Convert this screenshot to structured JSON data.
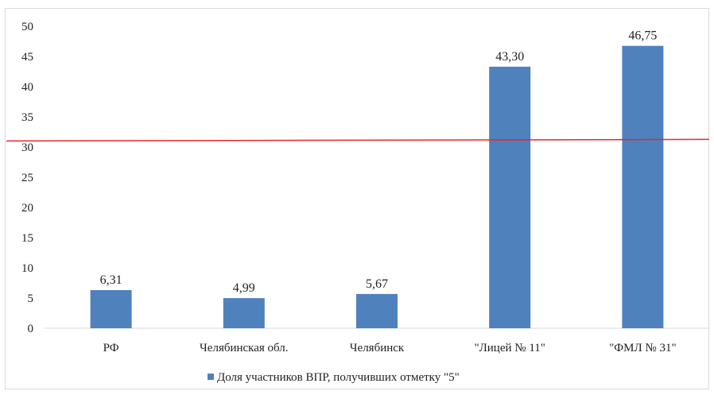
{
  "chart_data": {
    "type": "bar",
    "categories": [
      "РФ",
      "Челябинская обл.",
      "Челябинск",
      "\"Лицей № 11\"",
      "\"ФМЛ № 31\""
    ],
    "series": [
      {
        "name": "Доля участников ВПР, получивших отметку \"5\"",
        "values": [
          6.31,
          4.99,
          5.67,
          43.3,
          46.75
        ],
        "data_labels": [
          "6,31",
          "4,99",
          "5,67",
          "43,30",
          "46,75"
        ],
        "color": "#4f81bd"
      }
    ],
    "reference_line": {
      "value": 31,
      "color": "#e8262b"
    },
    "yticks": [
      "0",
      "5",
      "10",
      "15",
      "20",
      "25",
      "30",
      "35",
      "40",
      "45",
      "50"
    ],
    "ylim": [
      0,
      50
    ],
    "grid": false,
    "legend": "bottom",
    "title": "",
    "xlabel": "",
    "ylabel": ""
  }
}
